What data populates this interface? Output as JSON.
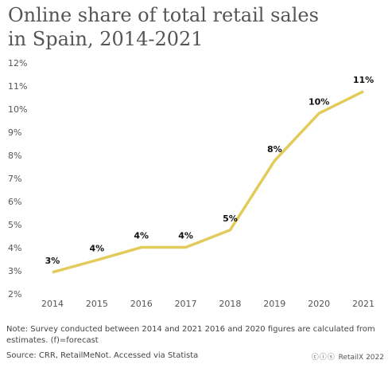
{
  "chart_data": {
    "type": "line",
    "title": "Online share of total retail sales in Spain, 2014-2021",
    "x": [
      "2014",
      "2015",
      "2016",
      "2017",
      "2018",
      "2019",
      "2020",
      "2021"
    ],
    "series": [
      {
        "name": "Online share",
        "color": "#e3cb5b",
        "values": [
          2.97,
          3.5,
          4.05,
          4.05,
          4.8,
          7.8,
          9.85,
          10.8
        ],
        "value_labels": [
          "3%",
          "4%",
          "4%",
          "4%",
          "5%",
          "8%",
          "10%",
          "11%"
        ]
      }
    ],
    "ylim": [
      2,
      12
    ],
    "yticks": [
      {
        "value": 2,
        "label": "2%"
      },
      {
        "value": 3,
        "label": "3%"
      },
      {
        "value": 4,
        "label": "4%"
      },
      {
        "value": 5,
        "label": "5%"
      },
      {
        "value": 6,
        "label": "6%"
      },
      {
        "value": 7,
        "label": "7%"
      },
      {
        "value": 8,
        "label": "8%"
      },
      {
        "value": 9,
        "label": "9%"
      },
      {
        "value": 10,
        "label": "10%"
      },
      {
        "value": 11,
        "label": "11%"
      },
      {
        "value": 12,
        "label": "12%"
      }
    ],
    "grid": false,
    "note": "Note: Survey conducted between 2014 and 2021 2016 and 2020 figures are calculated from estimates. (f)=forecast",
    "source": "Source: CRR, RetailMeNot. Accessed via Statista",
    "credit": "RetailX 2022"
  }
}
